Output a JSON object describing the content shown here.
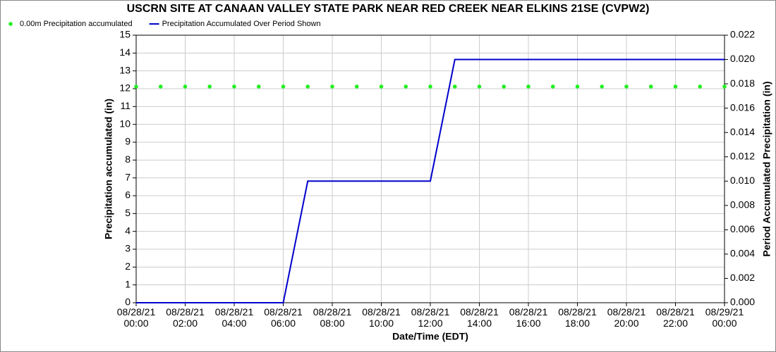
{
  "chart_data": {
    "type": "line",
    "title": "USCRN SITE AT CANAAN VALLEY STATE PARK NEAR RED CREEK NEAR ELKINS 21SE (CVPW2)",
    "x_label": "Date/Time (EDT)",
    "y_label": "Precipitation accumulated (in)",
    "y2_label": "Period Accumulated Precipitation (in)",
    "x": [
      "08/28/21\n00:00",
      "08/28/21\n01:00",
      "08/28/21\n02:00",
      "08/28/21\n03:00",
      "08/28/21\n04:00",
      "08/28/21\n05:00",
      "08/28/21\n06:00",
      "08/28/21\n07:00",
      "08/28/21\n08:00",
      "08/28/21\n09:00",
      "08/28/21\n10:00",
      "08/28/21\n11:00",
      "08/28/21\n12:00",
      "08/28/21\n13:00",
      "08/28/21\n14:00",
      "08/28/21\n15:00",
      "08/28/21\n16:00",
      "08/28/21\n17:00",
      "08/28/21\n18:00",
      "08/28/21\n19:00",
      "08/28/21\n20:00",
      "08/28/21\n21:00",
      "08/28/21\n22:00",
      "08/28/21\n23:00",
      "08/29/21\n00:00"
    ],
    "xticks": [
      "08/28/21\n00:00",
      "08/28/21\n02:00",
      "08/28/21\n04:00",
      "08/28/21\n06:00",
      "08/28/21\n08:00",
      "08/28/21\n10:00",
      "08/28/21\n12:00",
      "08/28/21\n14:00",
      "08/28/21\n16:00",
      "08/28/21\n18:00",
      "08/28/21\n20:00",
      "08/28/21\n22:00",
      "08/29/21\n00:00"
    ],
    "ylim": [
      0,
      15
    ],
    "yticks": [
      0,
      1,
      2,
      3,
      4,
      5,
      6,
      7,
      8,
      9,
      10,
      11,
      12,
      13,
      14,
      15
    ],
    "y2lim": [
      0,
      0.022
    ],
    "y2ticks": [
      {
        "value": 0,
        "label": "0.000"
      },
      0.002,
      0.004,
      0.006,
      0.008,
      {
        "value": 0.01,
        "label": "0.010"
      },
      0.012,
      0.014,
      0.016,
      0.018,
      {
        "value": 0.02,
        "label": "0.020"
      },
      0.022
    ],
    "grid": true,
    "legend": "top-left",
    "series": [
      {
        "name": "0.00m Precipitation accumulated",
        "color": "#22ee22",
        "style": "points",
        "values": [
          12.12,
          12.12,
          12.12,
          12.12,
          12.12,
          12.12,
          12.12,
          12.12,
          12.12,
          12.12,
          12.12,
          12.12,
          12.12,
          12.12,
          12.12,
          12.12,
          12.12,
          12.12,
          12.12,
          12.12,
          12.12,
          12.12,
          12.12,
          12.12,
          12.12
        ]
      },
      {
        "name": "Precipitation Accumulated Over Period Shown",
        "color": "#0000cc",
        "style": "line",
        "axis": "y2",
        "values": [
          0,
          0,
          0,
          0,
          0,
          0,
          0,
          0.01,
          0.01,
          0.01,
          0.01,
          0.01,
          0.01,
          0.02,
          0.02,
          0.02,
          0.02,
          0.02,
          0.02,
          0.02,
          0.02,
          0.02,
          0.02,
          0.02,
          0.02
        ]
      }
    ]
  }
}
